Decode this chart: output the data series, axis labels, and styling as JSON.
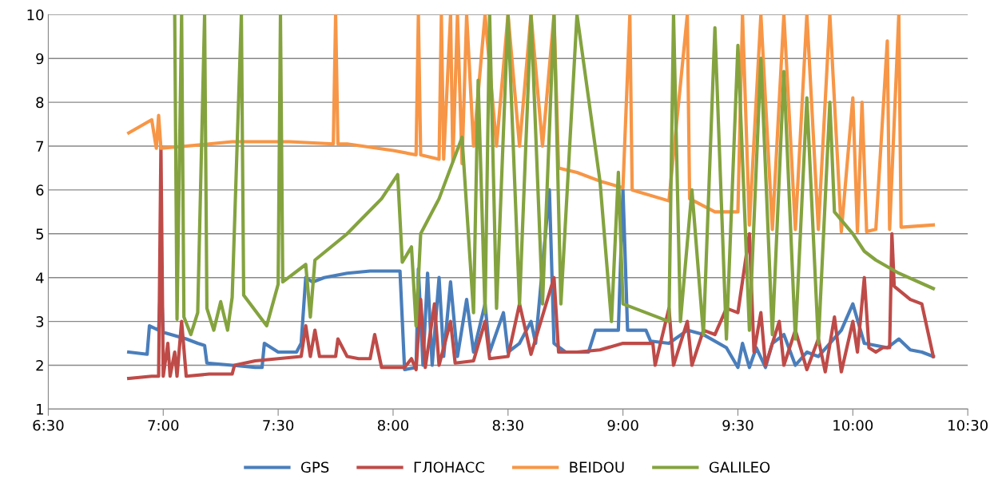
{
  "chart_data": {
    "type": "line",
    "legend": "bottom",
    "grid": "y",
    "line_style": "solid",
    "marker": "none",
    "xlim": [
      6.5,
      10.5
    ],
    "xticks": [
      {
        "value": 6.5,
        "label": "6:30"
      },
      {
        "value": 7,
        "label": "7:00"
      },
      {
        "value": 7.5,
        "label": "7:30"
      },
      {
        "value": 8,
        "label": "8:00"
      },
      {
        "value": 8.5,
        "label": "8:30"
      },
      {
        "value": 9,
        "label": "9:00"
      },
      {
        "value": 9.5,
        "label": "9:30"
      },
      {
        "value": 10,
        "label": "10:00"
      },
      {
        "value": 10.5,
        "label": "10:30"
      }
    ],
    "ylim": [
      1,
      10
    ],
    "yticks": [
      1,
      2,
      3,
      4,
      5,
      6,
      7,
      8,
      9,
      10
    ],
    "series": [
      {
        "name": "GPS",
        "color": "#4a7ebb",
        "x": [
          6.85,
          6.93,
          6.94,
          6.98,
          6.99,
          7.0,
          7.1,
          7.15,
          7.18,
          7.19,
          7.3,
          7.4,
          7.43,
          7.44,
          7.5,
          7.58,
          7.6,
          7.62,
          7.65,
          7.7,
          7.8,
          7.9,
          8.03,
          8.05,
          8.1,
          8.11,
          8.13,
          8.15,
          8.17,
          8.2,
          8.22,
          8.25,
          8.28,
          8.32,
          8.35,
          8.4,
          8.42,
          8.48,
          8.5,
          8.55,
          8.6,
          8.62,
          8.68,
          8.7,
          8.75,
          8.85,
          8.88,
          8.98,
          9.0,
          9.02,
          9.1,
          9.12,
          9.2,
          9.28,
          9.35,
          9.45,
          9.5,
          9.52,
          9.55,
          9.58,
          9.62,
          9.65,
          9.7,
          9.75,
          9.8,
          9.85,
          9.9,
          9.95,
          10.0,
          10.05,
          10.1,
          10.15,
          10.2,
          10.25,
          10.3,
          10.35
        ],
        "values": [
          2.3,
          2.25,
          2.9,
          2.8,
          4.0,
          2.75,
          2.6,
          2.5,
          2.45,
          2.05,
          2.0,
          1.95,
          1.95,
          2.5,
          2.3,
          2.3,
          2.5,
          4.0,
          3.9,
          4.0,
          4.1,
          4.15,
          4.15,
          1.9,
          1.95,
          4.2,
          2.0,
          4.1,
          2.0,
          4.0,
          2.2,
          3.9,
          2.2,
          3.5,
          2.3,
          3.4,
          2.3,
          3.2,
          2.3,
          2.5,
          3.0,
          2.5,
          6.0,
          2.5,
          2.3,
          2.3,
          2.8,
          2.8,
          6.0,
          2.8,
          2.8,
          2.55,
          2.5,
          2.8,
          2.7,
          2.4,
          1.95,
          2.5,
          1.95,
          2.4,
          1.95,
          2.5,
          2.7,
          2.0,
          2.3,
          2.2,
          2.5,
          2.8,
          3.4,
          2.5,
          2.45,
          2.4,
          2.6,
          2.35,
          2.3,
          2.2
        ]
      },
      {
        "name": "ГЛОНАСС",
        "color": "#be4b48",
        "x": [
          6.85,
          6.95,
          6.98,
          6.99,
          7.0,
          7.02,
          7.03,
          7.05,
          7.06,
          7.08,
          7.1,
          7.2,
          7.3,
          7.31,
          7.4,
          7.5,
          7.6,
          7.62,
          7.64,
          7.66,
          7.68,
          7.75,
          7.76,
          7.8,
          7.85,
          7.9,
          7.92,
          7.95,
          8.05,
          8.08,
          8.1,
          8.12,
          8.14,
          8.18,
          8.2,
          8.25,
          8.27,
          8.35,
          8.4,
          8.42,
          8.5,
          8.55,
          8.6,
          8.7,
          8.72,
          8.8,
          8.9,
          9.0,
          9.1,
          9.13,
          9.14,
          9.2,
          9.22,
          9.28,
          9.3,
          9.35,
          9.4,
          9.45,
          9.5,
          9.55,
          9.57,
          9.6,
          9.62,
          9.68,
          9.7,
          9.75,
          9.8,
          9.85,
          9.88,
          9.92,
          9.95,
          10.0,
          10.02,
          10.05,
          10.07,
          10.1,
          10.13,
          10.16,
          10.17,
          10.18,
          10.25,
          10.3,
          10.35
        ],
        "values": [
          1.7,
          1.75,
          1.75,
          7.0,
          1.75,
          2.5,
          1.75,
          2.3,
          1.75,
          3.0,
          1.75,
          1.8,
          1.8,
          2.0,
          2.1,
          2.15,
          2.2,
          2.9,
          2.2,
          2.8,
          2.2,
          2.2,
          2.6,
          2.2,
          2.15,
          2.15,
          2.7,
          1.95,
          1.95,
          2.15,
          1.9,
          3.5,
          1.95,
          3.4,
          2.0,
          3.0,
          2.05,
          2.1,
          3.0,
          2.15,
          2.2,
          3.4,
          2.25,
          4.0,
          2.3,
          2.3,
          2.35,
          2.5,
          2.5,
          2.5,
          2.0,
          3.3,
          2.0,
          3.0,
          2.0,
          2.8,
          2.7,
          3.3,
          3.2,
          5.0,
          2.3,
          3.2,
          2.0,
          3.0,
          2.0,
          2.8,
          1.9,
          2.6,
          1.85,
          3.1,
          1.85,
          3.0,
          2.3,
          4.0,
          2.4,
          2.3,
          2.4,
          2.4,
          5.0,
          3.8,
          3.5,
          3.4,
          2.2
        ]
      },
      {
        "name": "BEIDOU",
        "color": "#f79646",
        "x": [
          6.85,
          6.95,
          6.97,
          6.98,
          6.99,
          7.1,
          7.3,
          7.55,
          7.74,
          7.75,
          7.76,
          7.8,
          8.0,
          8.1,
          8.11,
          8.12,
          8.2,
          8.21,
          8.22,
          8.25,
          8.26,
          8.28,
          8.3,
          8.32,
          8.35,
          8.4,
          8.45,
          8.5,
          8.55,
          8.6,
          8.65,
          8.7,
          8.72,
          8.8,
          8.9,
          9.0,
          9.03,
          9.04,
          9.2,
          9.28,
          9.29,
          9.4,
          9.5,
          9.52,
          9.55,
          9.6,
          9.65,
          9.7,
          9.75,
          9.8,
          9.85,
          9.9,
          9.95,
          10.0,
          10.02,
          10.04,
          10.06,
          10.1,
          10.15,
          10.16,
          10.2,
          10.21,
          10.35
        ],
        "values": [
          7.3,
          7.6,
          6.95,
          7.7,
          6.95,
          7.0,
          7.1,
          7.1,
          7.05,
          10,
          7.05,
          7.05,
          6.9,
          6.8,
          10,
          6.8,
          6.7,
          10,
          6.7,
          10,
          6.65,
          10,
          6.6,
          10,
          7.0,
          10,
          7.0,
          10,
          7.0,
          10,
          7.0,
          10,
          6.5,
          6.4,
          6.2,
          6.05,
          10,
          6.0,
          5.75,
          10,
          5.8,
          5.5,
          5.5,
          10,
          5.2,
          10,
          5.1,
          10,
          5.1,
          10,
          5.1,
          10,
          5.05,
          8.1,
          5.05,
          8.0,
          5.05,
          5.1,
          9.4,
          5.1,
          10,
          5.15,
          5.2
        ]
      },
      {
        "name": "GALILEO",
        "color": "#84a33f",
        "x": [
          7.05,
          7.06,
          7.08,
          7.09,
          7.12,
          7.15,
          7.18,
          7.19,
          7.22,
          7.25,
          7.28,
          7.3,
          7.34,
          7.35,
          7.45,
          7.5,
          7.51,
          7.52,
          7.62,
          7.64,
          7.66,
          7.8,
          7.95,
          8.02,
          8.04,
          8.08,
          8.1,
          8.12,
          8.15,
          8.2,
          8.3,
          8.35,
          8.37,
          8.4,
          8.42,
          8.45,
          8.5,
          8.55,
          8.6,
          8.65,
          8.7,
          8.73,
          8.8,
          8.9,
          8.95,
          8.98,
          9.0,
          9.2,
          9.22,
          9.25,
          9.3,
          9.35,
          9.4,
          9.45,
          9.5,
          9.55,
          9.6,
          9.65,
          9.7,
          9.75,
          9.8,
          9.85,
          9.9,
          9.92,
          10.0,
          10.05,
          10.1,
          10.2,
          10.35
        ],
        "values": [
          10,
          3.05,
          10,
          3.1,
          2.7,
          3.2,
          10,
          3.3,
          2.8,
          3.45,
          2.8,
          3.55,
          10,
          3.6,
          2.9,
          3.85,
          10,
          3.9,
          4.3,
          3.1,
          4.4,
          5.0,
          5.8,
          6.35,
          4.35,
          4.7,
          2.9,
          5.0,
          5.3,
          5.8,
          7.2,
          3.2,
          8.5,
          3.2,
          10,
          3.3,
          10,
          3.4,
          10,
          3.4,
          10,
          3.4,
          10,
          6.2,
          3.0,
          6.4,
          3.4,
          3.0,
          10,
          3.0,
          6.0,
          2.7,
          9.7,
          2.6,
          9.3,
          2.8,
          9.0,
          2.7,
          8.7,
          2.6,
          8.1,
          2.5,
          8.0,
          5.5,
          5.0,
          4.6,
          4.4,
          4.1,
          3.75
        ]
      }
    ]
  }
}
